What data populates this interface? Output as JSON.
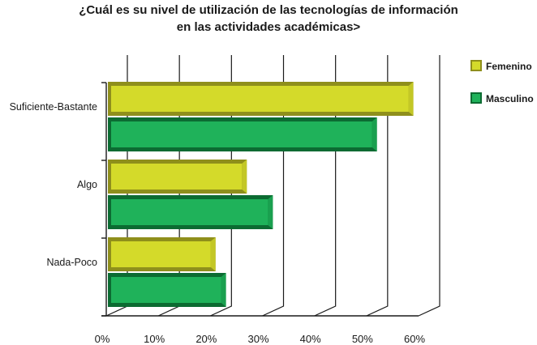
{
  "chart_data": {
    "type": "bar",
    "orientation": "horizontal",
    "title_lines": [
      "¿Cuál es su nivel de utilización de las tecnologías de información",
      "en las actividades académicas>"
    ],
    "categories": [
      "Suficiente-Bastante",
      "Algo",
      "Nada-Poco"
    ],
    "series": [
      {
        "name": "Femenino",
        "values": [
          59,
          27,
          21
        ],
        "color": "#d4da2a",
        "shade": "#8f8f1c"
      },
      {
        "name": "Masculino",
        "values": [
          52,
          32,
          23
        ],
        "color": "#1fb25a",
        "shade": "#0c6b32"
      }
    ],
    "x_ticks": [
      "0%",
      "10%",
      "20%",
      "30%",
      "40%",
      "50%",
      "60%"
    ],
    "xlim": [
      0,
      60
    ],
    "grid": "vertical",
    "legend_position": "top-right",
    "style": "3d"
  }
}
